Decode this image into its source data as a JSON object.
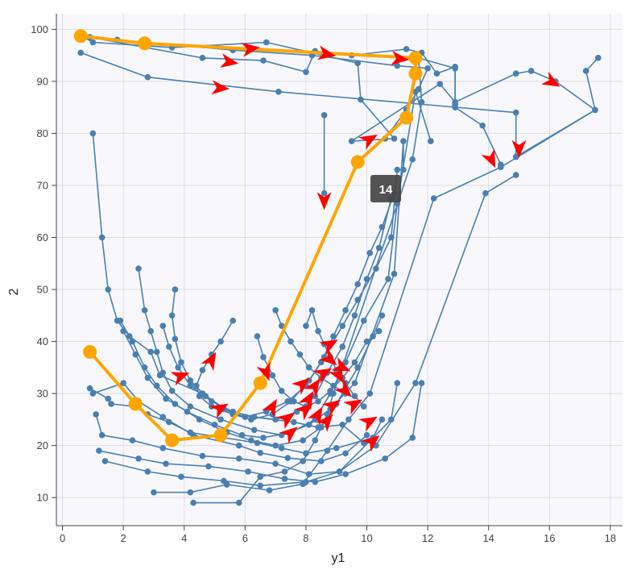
{
  "chart_data": {
    "type": "line",
    "xlabel": "y1",
    "ylabel": "2",
    "xlim": [
      -0.2,
      18.4
    ],
    "ylim": [
      4.6,
      103
    ],
    "x_ticks": [
      0,
      2,
      4,
      6,
      8,
      10,
      12,
      14,
      16,
      18
    ],
    "y_ticks": [
      10,
      20,
      30,
      40,
      50,
      60,
      70,
      80,
      90,
      100
    ],
    "grid": true,
    "frame_label": "14",
    "colors": {
      "background_line": "#4a7fb0",
      "highlight_line": "#ffa500",
      "arrow": "#ff0000",
      "plot_background": "#f8f8fc",
      "grid": "#dcdce6",
      "frame_label_bg": "#444444"
    },
    "background_paths": [
      [
        [
          1.0,
          80.0
        ],
        [
          1.3,
          60.0
        ],
        [
          1.5,
          50.0
        ],
        [
          1.8,
          44.0
        ],
        [
          2.2,
          41.0
        ],
        [
          2.9,
          38.0
        ],
        [
          3.2,
          33.5
        ],
        [
          4.6,
          30.0
        ],
        [
          5.6,
          26.0
        ],
        [
          7.6,
          24.5
        ],
        [
          8.4,
          23.5
        ],
        [
          9.2,
          24.0
        ],
        [
          9.9,
          20.5
        ]
      ],
      [
        [
          0.9,
          31.0
        ],
        [
          1.5,
          29.0
        ],
        [
          1.6,
          28.0
        ],
        [
          2.4,
          27.5
        ],
        [
          2.8,
          26.0
        ],
        [
          3.5,
          24.5
        ],
        [
          4.2,
          22.5
        ],
        [
          6.4,
          20.5
        ],
        [
          7.2,
          19.5
        ],
        [
          8.0,
          18.5
        ],
        [
          9.0,
          19.5
        ],
        [
          10.2,
          21.5
        ],
        [
          10.5,
          25.0
        ]
      ],
      [
        [
          1.0,
          30.0
        ],
        [
          2.0,
          32.0
        ],
        [
          2.5,
          28.5
        ],
        [
          3.3,
          25.5
        ],
        [
          4.3,
          22.0
        ],
        [
          5.8,
          20.0
        ],
        [
          6.5,
          18.6
        ],
        [
          7.4,
          17.6
        ],
        [
          8.5,
          17.0
        ],
        [
          9.3,
          18.5
        ],
        [
          10.0,
          22.0
        ]
      ],
      [
        [
          1.1,
          26.0
        ],
        [
          1.3,
          22.0
        ],
        [
          2.3,
          21.0
        ],
        [
          3.3,
          19.5
        ],
        [
          4.6,
          18.0
        ],
        [
          5.8,
          17.5
        ],
        [
          7.0,
          16.5
        ],
        [
          8.1,
          14.5
        ],
        [
          9.1,
          15.0
        ],
        [
          10.8,
          25.0
        ],
        [
          11.0,
          32.0
        ]
      ],
      [
        [
          1.2,
          19.0
        ],
        [
          2.5,
          17.5
        ],
        [
          3.4,
          16.5
        ],
        [
          4.8,
          16.0
        ],
        [
          6.1,
          15.0
        ],
        [
          7.3,
          13.6
        ],
        [
          8.3,
          13.0
        ],
        [
          9.3,
          14.5
        ],
        [
          10.6,
          17.5
        ],
        [
          11.5,
          21.5
        ],
        [
          11.8,
          32.0
        ]
      ],
      [
        [
          1.4,
          17.0
        ],
        [
          2.8,
          15.0
        ],
        [
          3.9,
          14.0
        ],
        [
          5.3,
          13.2
        ],
        [
          6.5,
          12.3
        ],
        [
          8.0,
          13.0
        ],
        [
          9.1,
          15.0
        ],
        [
          10.3,
          20.0
        ],
        [
          11.6,
          32.0
        ],
        [
          13.9,
          68.5
        ],
        [
          14.9,
          72.0
        ]
      ],
      [
        [
          3.0,
          11.0
        ],
        [
          4.2,
          11.0
        ],
        [
          5.4,
          12.5
        ],
        [
          6.8,
          11.4
        ],
        [
          7.9,
          12.6
        ],
        [
          8.7,
          19.0
        ],
        [
          9.4,
          25.0
        ],
        [
          10.1,
          30.0
        ],
        [
          12.2,
          67.5
        ],
        [
          14.4,
          73.5
        ],
        [
          17.5,
          84.5
        ],
        [
          17.2,
          92.0
        ],
        [
          17.6,
          94.5
        ]
      ],
      [
        [
          4.3,
          9.0
        ],
        [
          5.8,
          9.0
        ],
        [
          6.5,
          14.0
        ],
        [
          7.3,
          15.0
        ],
        [
          7.9,
          17.0
        ],
        [
          8.3,
          21.0
        ],
        [
          8.7,
          26.0
        ],
        [
          8.9,
          30.0
        ],
        [
          11.5,
          75.0
        ],
        [
          11.8,
          86.0
        ],
        [
          11.7,
          94.5
        ],
        [
          12.9,
          92.5
        ],
        [
          12.9,
          85.0
        ],
        [
          13.8,
          81.5
        ],
        [
          14.4,
          74.0
        ]
      ],
      [
        [
          2.5,
          54.0
        ],
        [
          2.7,
          46.0
        ],
        [
          2.9,
          42.0
        ],
        [
          3.1,
          38.0
        ],
        [
          3.3,
          34.0
        ],
        [
          3.6,
          30.5
        ],
        [
          4.2,
          27.5
        ],
        [
          5.2,
          25.0
        ],
        [
          6.3,
          23.0
        ],
        [
          7.2,
          22.0
        ],
        [
          8.1,
          24.0
        ],
        [
          8.8,
          27.0
        ],
        [
          9.6,
          32.0
        ],
        [
          10.9,
          53.0
        ],
        [
          11.2,
          78.5
        ],
        [
          11.2,
          73.0
        ]
      ],
      [
        [
          1.9,
          44.0
        ],
        [
          2.3,
          40.0
        ],
        [
          2.7,
          35.0
        ],
        [
          3.1,
          31.5
        ],
        [
          3.7,
          28.0
        ],
        [
          4.5,
          25.0
        ],
        [
          5.4,
          22.5
        ],
        [
          6.2,
          21.0
        ],
        [
          7.0,
          20.0
        ],
        [
          7.9,
          21.0
        ],
        [
          8.5,
          23.5
        ],
        [
          9.0,
          28.0
        ],
        [
          9.7,
          35.0
        ],
        [
          10.2,
          41.0
        ],
        [
          10.5,
          45.0
        ]
      ],
      [
        [
          2.0,
          42.0
        ],
        [
          2.4,
          37.5
        ],
        [
          2.8,
          33.0
        ],
        [
          3.4,
          29.0
        ],
        [
          4.1,
          26.5
        ],
        [
          5.0,
          24.0
        ],
        [
          5.9,
          22.0
        ],
        [
          6.6,
          21.5
        ],
        [
          7.5,
          22.5
        ],
        [
          8.3,
          25.0
        ],
        [
          8.8,
          30.0
        ],
        [
          9.3,
          36.0
        ],
        [
          9.9,
          44.0
        ],
        [
          10.7,
          52.0
        ],
        [
          11.0,
          66.5
        ],
        [
          11.6,
          88.0
        ],
        [
          12.1,
          78.5
        ]
      ],
      [
        [
          3.3,
          43.0
        ],
        [
          3.5,
          39.0
        ],
        [
          3.8,
          35.0
        ],
        [
          4.2,
          31.5
        ],
        [
          4.9,
          28.5
        ],
        [
          5.6,
          26.5
        ],
        [
          6.3,
          25.5
        ],
        [
          7.0,
          25.0
        ],
        [
          7.7,
          26.5
        ],
        [
          8.3,
          29.5
        ],
        [
          8.7,
          34.0
        ],
        [
          9.2,
          39.0
        ],
        [
          9.6,
          45.0
        ],
        [
          10.0,
          52.0
        ],
        [
          10.4,
          58.0
        ],
        [
          10.8,
          67.5
        ]
      ],
      [
        [
          3.7,
          50.0
        ],
        [
          3.6,
          45.0
        ],
        [
          3.7,
          40.5
        ],
        [
          3.9,
          36.0
        ],
        [
          4.2,
          32.5
        ],
        [
          4.7,
          29.5
        ],
        [
          5.3,
          27.0
        ],
        [
          6.0,
          25.5
        ],
        [
          6.7,
          26.5
        ],
        [
          7.4,
          28.5
        ],
        [
          8.0,
          31.5
        ],
        [
          8.5,
          36.0
        ],
        [
          8.9,
          41.0
        ],
        [
          9.3,
          46.0
        ],
        [
          9.7,
          51.0
        ],
        [
          10.1,
          57.0
        ],
        [
          10.5,
          62.0
        ],
        [
          10.9,
          68.5
        ]
      ],
      [
        [
          5.6,
          44.0
        ],
        [
          5.2,
          40.0
        ],
        [
          4.9,
          37.5
        ],
        [
          4.6,
          34.5
        ],
        [
          4.4,
          31.5
        ],
        [
          4.5,
          29.5
        ],
        [
          4.9,
          27.5
        ],
        [
          5.6,
          26.0
        ],
        [
          6.2,
          25.0
        ],
        [
          6.9,
          26.0
        ],
        [
          7.5,
          28.5
        ],
        [
          8.1,
          32.5
        ],
        [
          8.6,
          37.0
        ],
        [
          9.2,
          43.0
        ],
        [
          9.7,
          48.0
        ],
        [
          10.3,
          54.0
        ],
        [
          10.8,
          60.0
        ],
        [
          11.0,
          73.0
        ]
      ],
      [
        [
          6.4,
          41.0
        ],
        [
          6.6,
          37.0
        ],
        [
          6.9,
          33.5
        ],
        [
          7.2,
          30.5
        ],
        [
          7.6,
          28.5
        ],
        [
          8.0,
          27.5
        ],
        [
          8.4,
          28.5
        ],
        [
          8.8,
          30.5
        ],
        [
          9.2,
          33.0
        ],
        [
          9.6,
          36.0
        ],
        [
          10.0,
          40.0
        ],
        [
          10.4,
          42.0
        ]
      ],
      [
        [
          7.0,
          46.0
        ],
        [
          7.2,
          43.0
        ],
        [
          7.5,
          40.0
        ],
        [
          7.8,
          37.5
        ],
        [
          8.1,
          35.0
        ],
        [
          8.5,
          33.0
        ],
        [
          8.9,
          31.5
        ],
        [
          9.3,
          30.0
        ]
      ],
      [
        [
          8.0,
          43.0
        ],
        [
          8.2,
          46.0
        ],
        [
          8.4,
          42.0
        ],
        [
          8.6,
          39.5
        ],
        [
          8.8,
          37.0
        ],
        [
          9.0,
          34.5
        ],
        [
          9.3,
          32.0
        ],
        [
          9.6,
          29.5
        ],
        [
          9.9,
          27.5
        ]
      ],
      [
        [
          8.6,
          83.5
        ],
        [
          8.6,
          68.5
        ]
      ],
      [
        [
          0.6,
          95.5
        ],
        [
          2.8,
          90.8
        ],
        [
          7.1,
          88.0
        ],
        [
          14.9,
          84.0
        ],
        [
          14.9,
          75.5
        ]
      ],
      [
        [
          0.7,
          98.5
        ],
        [
          1.0,
          97.5
        ],
        [
          3.6,
          96.5
        ],
        [
          6.7,
          97.5
        ],
        [
          9.7,
          93.5
        ],
        [
          9.8,
          86.5
        ],
        [
          10.9,
          79.0
        ],
        [
          9.5,
          78.5
        ],
        [
          12.4,
          89.5
        ],
        [
          12.9,
          86.0
        ],
        [
          14.9,
          91.5
        ],
        [
          15.4,
          92.0
        ],
        [
          16.2,
          90.0
        ],
        [
          17.5,
          84.5
        ],
        [
          14.9,
          75.5
        ]
      ],
      [
        [
          0.9,
          98.5
        ],
        [
          4.6,
          94.5
        ],
        [
          6.6,
          94.0
        ],
        [
          8.0,
          91.8
        ],
        [
          8.3,
          95.8
        ],
        [
          9.5,
          95.0
        ],
        [
          11.3,
          96.2
        ],
        [
          11.8,
          95.5
        ],
        [
          12.3,
          91.5
        ],
        [
          12.9,
          92.8
        ],
        [
          12.9,
          85.5
        ]
      ],
      [
        [
          1.8,
          98.0
        ],
        [
          5.6,
          96.0
        ],
        [
          8.2,
          95.0
        ],
        [
          11.0,
          93.0
        ],
        [
          12.0,
          92.5
        ],
        [
          11.7,
          88.5
        ],
        [
          11.3,
          84.5
        ],
        [
          10.6,
          79.0
        ]
      ]
    ],
    "highlight_path": [
      [
        0.6,
        98.7
      ],
      [
        2.7,
        97.3
      ],
      [
        11.6,
        94.5
      ],
      [
        11.6,
        91.5
      ],
      [
        11.3,
        83.0
      ],
      [
        9.7,
        74.5
      ],
      [
        6.5,
        32.0
      ],
      [
        5.2,
        22.0
      ],
      [
        3.6,
        21.0
      ],
      [
        2.4,
        28.0
      ],
      [
        0.9,
        38.0
      ]
    ],
    "arrows": [
      [
        6.2,
        96.3,
        -8
      ],
      [
        8.7,
        95.2,
        10
      ],
      [
        11.1,
        94.3,
        6
      ],
      [
        5.5,
        93.7,
        10
      ],
      [
        5.2,
        88.7,
        5
      ],
      [
        16.1,
        89.8,
        30
      ],
      [
        15.0,
        77.0,
        90
      ],
      [
        14.1,
        74.9,
        65
      ],
      [
        10.1,
        78.9,
        -30
      ],
      [
        8.6,
        67.0,
        90
      ],
      [
        4.9,
        36.5,
        -60
      ],
      [
        3.9,
        33.4,
        -20
      ],
      [
        5.2,
        27.2,
        -30
      ],
      [
        6.7,
        34.0,
        70
      ],
      [
        6.9,
        27.5,
        -60
      ],
      [
        7.4,
        25.3,
        -35
      ],
      [
        7.5,
        22.5,
        -40
      ],
      [
        8.0,
        27.0,
        -40
      ],
      [
        8.1,
        29.0,
        -60
      ],
      [
        8.3,
        31.5,
        -55
      ],
      [
        8.6,
        34.0,
        -30
      ],
      [
        8.8,
        36.5,
        40
      ],
      [
        9.1,
        33.4,
        60
      ],
      [
        9.3,
        30.5,
        45
      ],
      [
        9.6,
        28.0,
        -30
      ],
      [
        8.7,
        24.8,
        -50
      ],
      [
        8.9,
        27.8,
        -35
      ],
      [
        8.4,
        26.0,
        -60
      ],
      [
        10.1,
        24.7,
        -30
      ],
      [
        10.2,
        20.9,
        -40
      ],
      [
        8.8,
        39.5,
        -30
      ],
      [
        9.2,
        35.0,
        25
      ],
      [
        7.9,
        31.9,
        -40
      ]
    ]
  }
}
